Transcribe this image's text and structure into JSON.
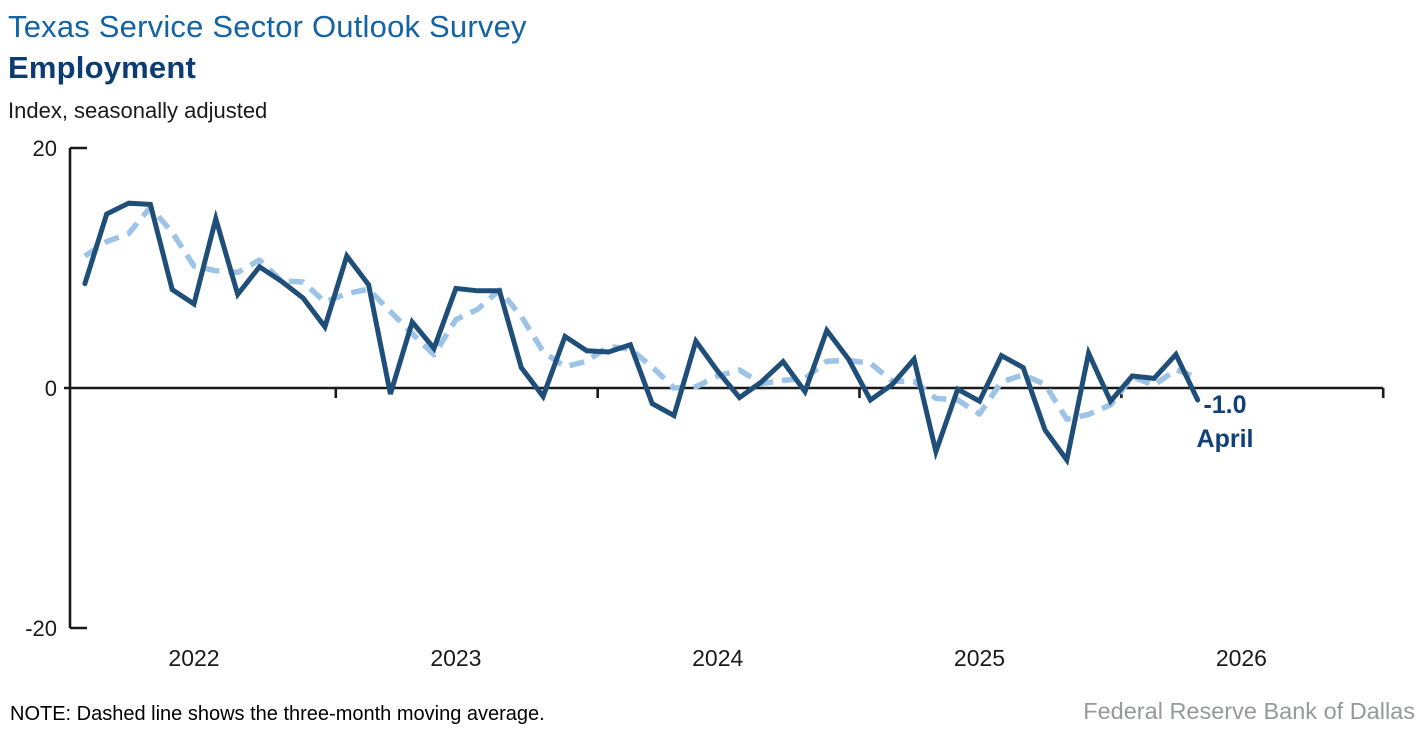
{
  "page": {
    "title": "Texas Service Sector Outlook Survey",
    "subtitle": "Employment",
    "units_label": "Index, seasonally adjusted"
  },
  "annotation": {
    "value": "-1.0",
    "month": "April"
  },
  "footer": {
    "note": "NOTE: Dashed line shows the three-month moving average.",
    "source": "Federal Reserve Bank of Dallas"
  },
  "colors": {
    "title_blue": "#1463A5",
    "subtitle_navy": "#0C3C74",
    "annotation_navy": "#123F78",
    "solid_line": "#1F4E79",
    "dashed_line": "#9DC3E6",
    "axis_black": "#1a1a1a",
    "source_gray": "#96989B"
  },
  "chart_data": {
    "type": "line",
    "title": "Texas Service Sector Outlook Survey — Employment",
    "ylabel": "Index, seasonally adjusted",
    "ylim": [
      -20,
      20
    ],
    "yticks": [
      20,
      0,
      -20
    ],
    "x_year_labels": [
      "2022",
      "2023",
      "2024",
      "2025",
      "2026"
    ],
    "x_axis_span_months": 60,
    "grid": "zero baseline only, year ticks below baseline",
    "legend": "none (dashed line explained in footer note)",
    "series": [
      {
        "name": "Employment index, monthly (seasonally adjusted)",
        "style": "solid",
        "color": "#1F4E79",
        "start_month": "2022-01",
        "end_month": "2026-04",
        "values": [
          8.7,
          14.5,
          15.4,
          15.3,
          8.2,
          7.0,
          14.1,
          7.8,
          10.1,
          8.9,
          7.5,
          5.1,
          11.0,
          8.6,
          -0.5,
          5.5,
          3.3,
          8.3,
          8.1,
          8.1,
          1.7,
          -0.7,
          4.3,
          3.1,
          3.0,
          3.6,
          -1.3,
          -2.3,
          3.9,
          1.4,
          -0.8,
          0.5,
          2.2,
          -0.3,
          4.8,
          2.4,
          -1.0,
          0.3,
          2.4,
          -5.3,
          -0.1,
          -1.1,
          2.7,
          1.7,
          -3.5,
          -6.0,
          2.9,
          -1.1,
          1.0,
          0.8,
          2.8,
          -1.0
        ]
      },
      {
        "name": "Three-month moving average",
        "style": "dashed",
        "color": "#9DC3E6",
        "derivation": "three-month moving average of the monthly series",
        "lead_in_values": [
          11.0,
          12.2
        ]
      }
    ],
    "last_point_annotation": {
      "value": -1.0,
      "month": "April"
    }
  }
}
